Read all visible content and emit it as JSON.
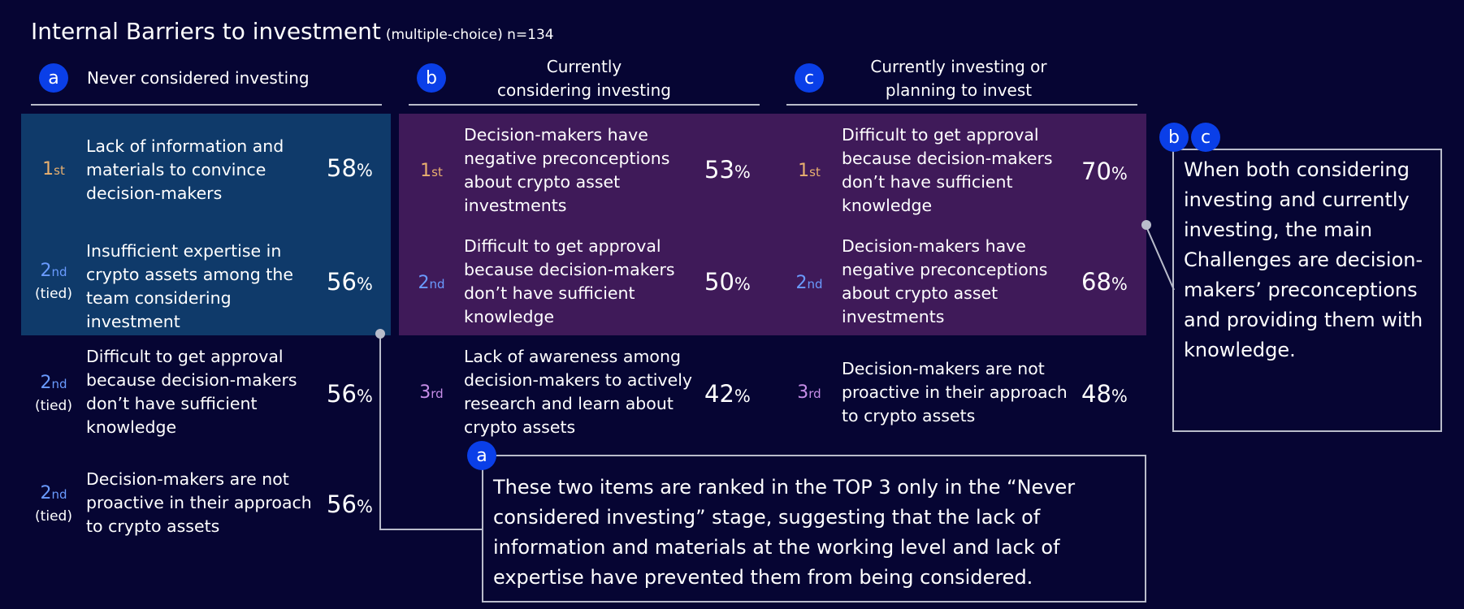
{
  "title": {
    "main": "Internal Barriers to investment",
    "sub": "(multiple-choice) n=134"
  },
  "colors": {
    "background": "#060533",
    "panel_a": "#0f3a6a",
    "panel_bc": "#3f1a59",
    "badge": "#0a3fe8",
    "rank_1st": "#e9b06f",
    "rank_2nd": "#6a9bff",
    "rank_3rd": "#c78ee8"
  },
  "columns": {
    "a": {
      "badge": "a",
      "heading": "Never considered investing",
      "rows": [
        {
          "rank": "1",
          "suffix": "st",
          "tied": "",
          "text": "Lack of information and materials to convince decision-makers",
          "pct": "58",
          "pct_unit": "%"
        },
        {
          "rank": "2",
          "suffix": "nd",
          "tied": "(tied)",
          "text": "Insufficient expertise in crypto assets among the team considering investment",
          "pct": "56",
          "pct_unit": "%"
        },
        {
          "rank": "2",
          "suffix": "nd",
          "tied": "(tied)",
          "text": "Difficult to get approval because decision-makers don’t have sufficient knowledge",
          "pct": "56",
          "pct_unit": "%"
        },
        {
          "rank": "2",
          "suffix": "nd",
          "tied": "(tied)",
          "text": "Decision-makers are not proactive in their approach to crypto assets",
          "pct": "56",
          "pct_unit": "%"
        }
      ]
    },
    "b": {
      "badge": "b",
      "heading_line1": "Currently",
      "heading_line2": "considering investing",
      "rows": [
        {
          "rank": "1",
          "suffix": "st",
          "text": "Decision-makers have negative preconceptions about crypto asset investments",
          "pct": "53",
          "pct_unit": "%"
        },
        {
          "rank": "2",
          "suffix": "nd",
          "text": "Difficult to get approval because decision-makers don’t have sufficient knowledge",
          "pct": "50",
          "pct_unit": "%"
        },
        {
          "rank": "3",
          "suffix": "rd",
          "text": "Lack of awareness among decision-makers to actively research and learn about crypto assets",
          "pct": "42",
          "pct_unit": "%"
        }
      ]
    },
    "c": {
      "badge": "c",
      "heading_line1": "Currently investing or",
      "heading_line2": "planning to invest",
      "rows": [
        {
          "rank": "1",
          "suffix": "st",
          "text": "Difficult to get approval because decision-makers don’t have sufficient knowledge",
          "pct": "70",
          "pct_unit": "%"
        },
        {
          "rank": "2",
          "suffix": "nd",
          "text": "Decision-makers have negative preconceptions about crypto asset investments",
          "pct": "68",
          "pct_unit": "%"
        },
        {
          "rank": "3",
          "suffix": "rd",
          "text": "Decision-makers are not proactive in their approach to crypto assets",
          "pct": "48",
          "pct_unit": "%"
        }
      ]
    }
  },
  "callout_bc": {
    "badge_b": "b",
    "badge_c": "c",
    "text": "When both considering investing and currently investing, the main Challenges are decision-makers’ preconceptions and providing them with knowledge."
  },
  "callout_a": {
    "badge": "a",
    "text": "These two items are ranked in the TOP 3 only in the “Never considered investing” stage, suggesting that the lack of information and materials at the working level and lack of expertise have prevented them from being considered."
  }
}
